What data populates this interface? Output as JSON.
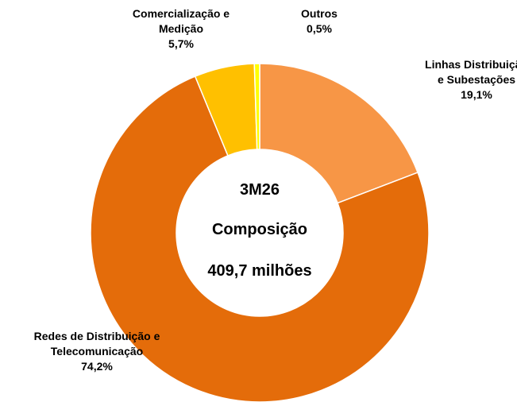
{
  "chart_data": {
    "type": "donut",
    "categories": [
      "Linhas Distribuição e Subestações",
      "Redes de Distribuição e Telecomunicação",
      "Comercialização e Medição",
      "Outros"
    ],
    "values": [
      19.1,
      74.2,
      5.7,
      0.5
    ],
    "value_labels": [
      "19,1%",
      "74,2%",
      "5,7%",
      "0,5%"
    ],
    "colors": [
      "#F79646",
      "#E46C0A",
      "#FFC000",
      "#FFFF00"
    ],
    "center_text": [
      "3M26",
      "Composição",
      "409,7 milhões"
    ]
  }
}
